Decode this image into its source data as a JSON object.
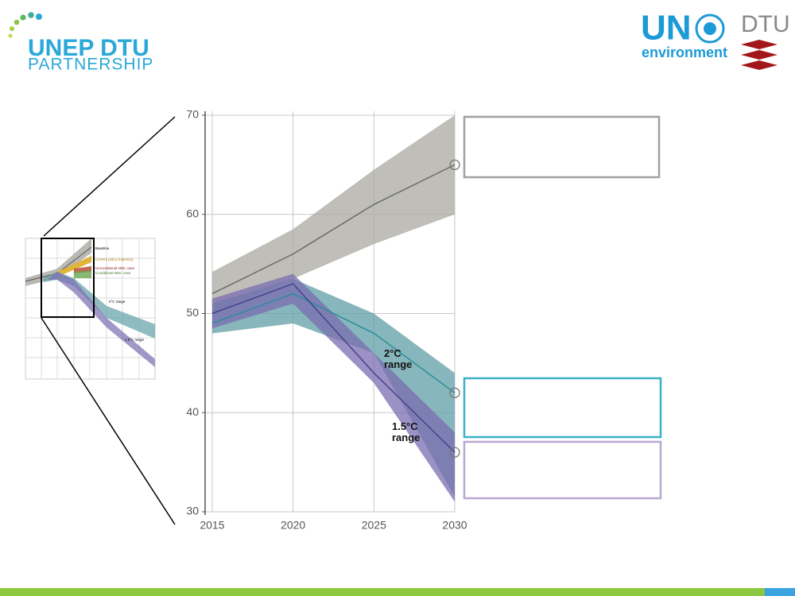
{
  "header": {
    "logo_title": "UNEP DTU",
    "logo_subtitle": "PARTNERSHIP",
    "un_logo": "UN",
    "un_subtitle": "environment",
    "dtu_logo": "DTU"
  },
  "inset": {
    "labels": [
      "Baseline",
      "Current policy trajectory",
      "Unconditional NDC case",
      "Conditional NDC case",
      "2°C range",
      "1.5°C range"
    ]
  },
  "chart_data": {
    "type": "line",
    "x": [
      2015,
      2020,
      2025,
      2030
    ],
    "xlim": [
      2014.56,
      2030
    ],
    "xticks": [
      2015,
      2020,
      2025,
      2030
    ],
    "ylim": [
      30,
      70
    ],
    "yticks": [
      30,
      40,
      50,
      60,
      70
    ],
    "grid": true,
    "series": [
      {
        "color": "#6b6b66",
        "band_color": "#a9a8a0",
        "values": [
          52,
          56,
          61,
          65
        ],
        "lower": [
          50,
          53.5,
          57,
          60
        ],
        "upper": [
          54.2,
          58.5,
          64.5,
          70
        ]
      },
      {
        "color": "#2b8c9c",
        "band_color": "#5f9fa6",
        "values": [
          49,
          52,
          48,
          42
        ],
        "lower": [
          48,
          49,
          46,
          31.5
        ],
        "upper": [
          51,
          53.5,
          50,
          44
        ]
      },
      {
        "color": "#4a3f8c",
        "band_color": "#7a6cb0",
        "values": [
          50,
          53,
          44,
          36
        ],
        "lower": [
          48.5,
          51,
          43,
          31
        ],
        "upper": [
          51.5,
          54,
          46,
          38
        ]
      }
    ],
    "annotations": [
      "2°C range",
      "1.5°C range"
    ]
  }
}
